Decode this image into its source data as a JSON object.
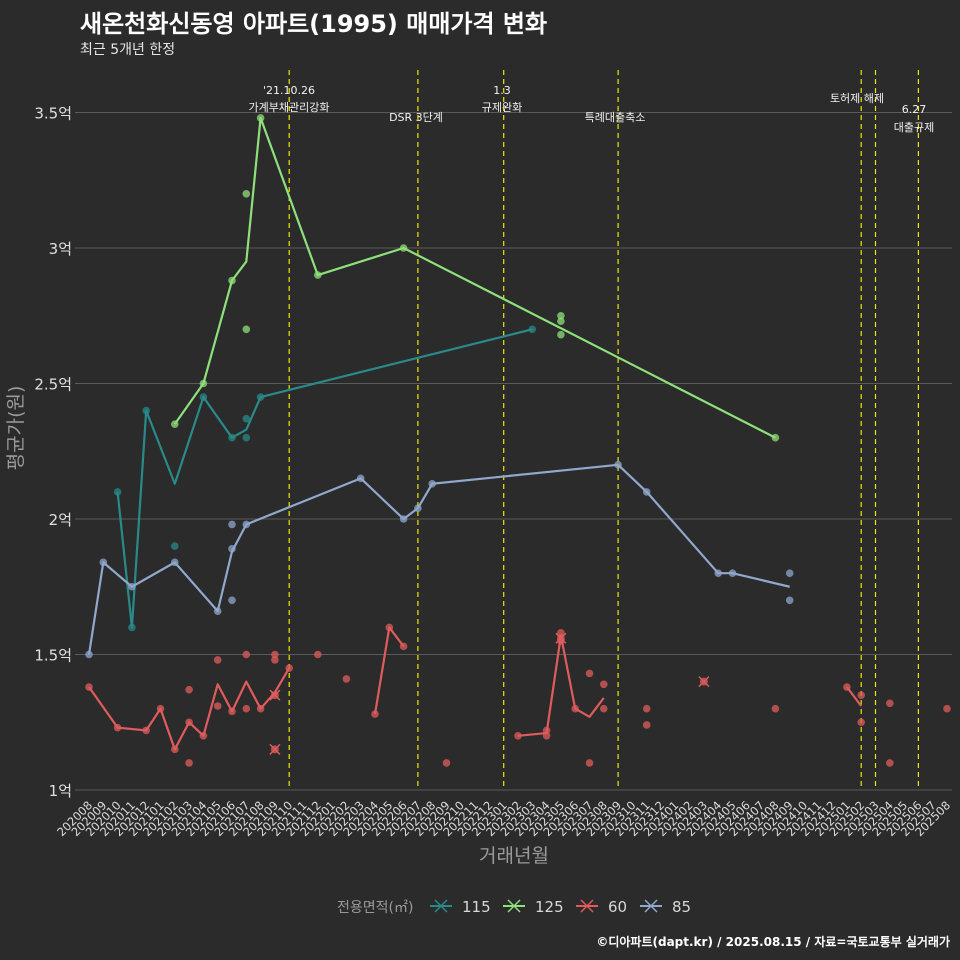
{
  "title": "새온천화신동영 아파트(1995) 매매가격 변화",
  "subtitle": "최근 5개년 한정",
  "caption": "©디아파트(dapt.kr) / 2025.08.15 / 자료=국토교통부 실거래가",
  "chart_data": {
    "type": "line",
    "xlabel": "거래년월",
    "ylabel": "평균가(원)",
    "ylim": [
      1,
      3.65
    ],
    "yticks": [
      {
        "value": 1,
        "label": "1억"
      },
      {
        "value": 1.5,
        "label": "1.5억"
      },
      {
        "value": 2,
        "label": "2억"
      },
      {
        "value": 2.5,
        "label": "2.5억"
      },
      {
        "value": 3,
        "label": "3억"
      },
      {
        "value": 3.5,
        "label": "3.5억"
      }
    ],
    "categories": [
      "202008",
      "202009",
      "202010",
      "202011",
      "202012",
      "202101",
      "202102",
      "202103",
      "202104",
      "202105",
      "202106",
      "202107",
      "202108",
      "202109",
      "202110",
      "202111",
      "202112",
      "202201",
      "202202",
      "202203",
      "202204",
      "202205",
      "202206",
      "202207",
      "202208",
      "202209",
      "202210",
      "202211",
      "202212",
      "202301",
      "202302",
      "202303",
      "202304",
      "202305",
      "202306",
      "202307",
      "202308",
      "202309",
      "202310",
      "202311",
      "202312",
      "202401",
      "202402",
      "202403",
      "202404",
      "202405",
      "202406",
      "202407",
      "202408",
      "202409",
      "202410",
      "202411",
      "202412",
      "202501",
      "202502",
      "202503",
      "202504",
      "202505",
      "202506",
      "202507",
      "202508"
    ],
    "legend": {
      "title": "전용면적(㎡)",
      "position": "bottom"
    },
    "series": [
      {
        "name": "115",
        "color": "#2a8a8a",
        "line": [
          [
            "202010",
            2.1
          ],
          [
            "202011",
            1.6
          ],
          [
            "202012",
            2.4
          ],
          [
            "202102",
            2.13
          ],
          [
            "202104",
            2.45
          ],
          [
            "202106",
            2.3
          ],
          [
            "202107",
            2.33
          ],
          [
            "202108",
            2.45
          ],
          [
            "202303",
            2.7
          ]
        ],
        "points": [
          [
            "202010",
            2.1
          ],
          [
            "202011",
            1.6
          ],
          [
            "202012",
            2.4
          ],
          [
            "202102",
            1.9
          ],
          [
            "202104",
            2.45
          ],
          [
            "202106",
            2.3
          ],
          [
            "202107",
            2.37
          ],
          [
            "202107",
            2.3
          ],
          [
            "202108",
            2.45
          ],
          [
            "202303",
            2.7
          ]
        ]
      },
      {
        "name": "125",
        "color": "#8fe07a",
        "line": [
          [
            "202102",
            2.35
          ],
          [
            "202104",
            2.5
          ],
          [
            "202106",
            2.88
          ],
          [
            "202107",
            2.95
          ],
          [
            "202108",
            3.48
          ],
          [
            "202112",
            2.9
          ],
          [
            "202206",
            3.0
          ],
          [
            "202408",
            2.3
          ]
        ],
        "points": [
          [
            "202102",
            2.35
          ],
          [
            "202104",
            2.5
          ],
          [
            "202106",
            2.88
          ],
          [
            "202107",
            3.2
          ],
          [
            "202107",
            2.7
          ],
          [
            "202108",
            3.48
          ],
          [
            "202112",
            2.9
          ],
          [
            "202206",
            3.0
          ],
          [
            "202305",
            2.75
          ],
          [
            "202305",
            2.73
          ],
          [
            "202305",
            2.68
          ],
          [
            "202408",
            2.3
          ]
        ]
      },
      {
        "name": "60",
        "color": "#e05c5c",
        "line": [
          [
            "202008",
            1.38
          ],
          [
            "202010",
            1.23
          ],
          [
            "202012",
            1.22
          ],
          [
            "202101",
            1.3
          ],
          [
            "202102",
            1.15
          ],
          [
            "202103",
            1.25
          ],
          [
            "202104",
            1.2
          ],
          [
            "202105",
            1.39
          ],
          [
            "202106",
            1.29
          ],
          [
            "202107",
            1.4
          ],
          [
            "202108",
            1.3
          ],
          [
            "202109",
            1.36
          ],
          [
            "202110",
            1.45
          ]
        ],
        "line2": [
          [
            "202204",
            1.28
          ],
          [
            "202205",
            1.6
          ],
          [
            "202206",
            1.53
          ]
        ],
        "line3": [
          [
            "202302",
            1.2
          ],
          [
            "202304",
            1.21
          ],
          [
            "202305",
            1.57
          ],
          [
            "202306",
            1.3
          ],
          [
            "202307",
            1.27
          ],
          [
            "202308",
            1.34
          ]
        ],
        "line4": [
          [
            "202501",
            1.38
          ],
          [
            "202502",
            1.31
          ]
        ],
        "points": [
          [
            "202008",
            1.38
          ],
          [
            "202010",
            1.23
          ],
          [
            "202012",
            1.22
          ],
          [
            "202101",
            1.3
          ],
          [
            "202102",
            1.15
          ],
          [
            "202103",
            1.37
          ],
          [
            "202103",
            1.25
          ],
          [
            "202103",
            1.1
          ],
          [
            "202104",
            1.2
          ],
          [
            "202105",
            1.48
          ],
          [
            "202105",
            1.31
          ],
          [
            "202106",
            1.29
          ],
          [
            "202107",
            1.5
          ],
          [
            "202107",
            1.3
          ],
          [
            "202108",
            1.3
          ],
          [
            "202109",
            1.5
          ],
          [
            "202109",
            1.48
          ],
          [
            "202110",
            1.45
          ],
          [
            "202112",
            1.5
          ],
          [
            "202202",
            1.41
          ],
          [
            "202204",
            1.28
          ],
          [
            "202205",
            1.6
          ],
          [
            "202206",
            1.53
          ],
          [
            "202209",
            1.1
          ],
          [
            "202302",
            1.2
          ],
          [
            "202304",
            1.2
          ],
          [
            "202304",
            1.22
          ],
          [
            "202305",
            1.58
          ],
          [
            "202305",
            1.55
          ],
          [
            "202306",
            1.3
          ],
          [
            "202307",
            1.43
          ],
          [
            "202307",
            1.1
          ],
          [
            "202308",
            1.39
          ],
          [
            "202308",
            1.3
          ],
          [
            "202311",
            1.3
          ],
          [
            "202311",
            1.24
          ],
          [
            "202408",
            1.3
          ],
          [
            "202501",
            1.38
          ],
          [
            "202502",
            1.35
          ],
          [
            "202502",
            1.25
          ],
          [
            "202504",
            1.32
          ],
          [
            "202504",
            1.1
          ],
          [
            "202508",
            1.3
          ]
        ],
        "crosses": [
          [
            "202109",
            1.15
          ],
          [
            "202109",
            1.35
          ],
          [
            "202305",
            1.56
          ],
          [
            "202403",
            1.4
          ]
        ]
      },
      {
        "name": "85",
        "color": "#8fa8cc",
        "line": [
          [
            "202008",
            1.5
          ],
          [
            "202009",
            1.84
          ],
          [
            "202011",
            1.75
          ],
          [
            "202102",
            1.84
          ],
          [
            "202105",
            1.66
          ],
          [
            "202106",
            1.88
          ],
          [
            "202107",
            1.98
          ],
          [
            "202203",
            2.15
          ],
          [
            "202206",
            2.0
          ],
          [
            "202207",
            2.04
          ],
          [
            "202208",
            2.13
          ],
          [
            "202309",
            2.2
          ],
          [
            "202311",
            2.1
          ],
          [
            "202404",
            1.8
          ],
          [
            "202405",
            1.8
          ],
          [
            "202409",
            1.75
          ]
        ],
        "points": [
          [
            "202008",
            1.5
          ],
          [
            "202009",
            1.84
          ],
          [
            "202011",
            1.75
          ],
          [
            "202102",
            1.84
          ],
          [
            "202105",
            1.66
          ],
          [
            "202106",
            1.98
          ],
          [
            "202106",
            1.89
          ],
          [
            "202106",
            1.7
          ],
          [
            "202107",
            1.98
          ],
          [
            "202203",
            2.15
          ],
          [
            "202206",
            2.0
          ],
          [
            "202207",
            2.04
          ],
          [
            "202208",
            2.13
          ],
          [
            "202309",
            2.2
          ],
          [
            "202311",
            2.1
          ],
          [
            "202404",
            1.8
          ],
          [
            "202405",
            1.8
          ],
          [
            "202409",
            1.8
          ],
          [
            "202409",
            1.7
          ]
        ]
      }
    ],
    "events": [
      {
        "x": "202110",
        "lines": [
          "'21.10.26",
          "가계부채관리강화"
        ]
      },
      {
        "x": "202207",
        "lines": [
          "DSR 3단계"
        ]
      },
      {
        "x": "202301",
        "lines": [
          "1.3",
          "규제완화"
        ]
      },
      {
        "x": "202309",
        "lines": [
          "특례대출축소"
        ]
      },
      {
        "x": "202502",
        "lines": [
          "토허제 해제"
        ]
      },
      {
        "x": "202503",
        "lines": []
      },
      {
        "x": "202506",
        "lines": [
          "6.27",
          "대출규제"
        ]
      }
    ]
  }
}
